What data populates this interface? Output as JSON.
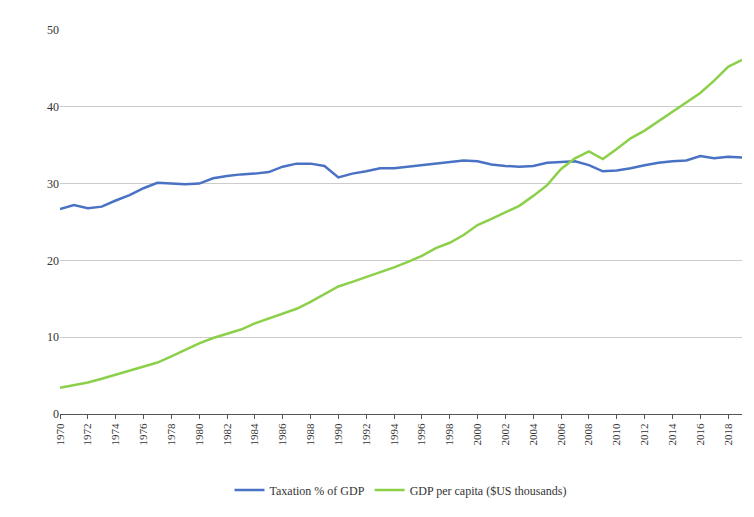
{
  "chart_data": {
    "type": "line",
    "x": [
      1970,
      1971,
      1972,
      1973,
      1974,
      1975,
      1976,
      1977,
      1978,
      1979,
      1980,
      1981,
      1982,
      1983,
      1984,
      1985,
      1986,
      1987,
      1988,
      1989,
      1990,
      1991,
      1992,
      1993,
      1994,
      1995,
      1996,
      1997,
      1998,
      1999,
      2000,
      2001,
      2002,
      2003,
      2004,
      2005,
      2006,
      2007,
      2008,
      2009,
      2010,
      2011,
      2012,
      2013,
      2014,
      2015,
      2016,
      2017,
      2018,
      2019
    ],
    "series": [
      {
        "name": "Taxation % of GDP",
        "color": "#4a72c4",
        "values": [
          26.7,
          27.2,
          26.8,
          27.0,
          27.8,
          28.5,
          29.4,
          30.1,
          30.0,
          29.9,
          30.0,
          30.7,
          31.0,
          31.2,
          31.3,
          31.5,
          32.2,
          32.6,
          32.6,
          32.3,
          30.8,
          31.3,
          31.6,
          32.0,
          32.0,
          32.2,
          32.4,
          32.6,
          32.8,
          33.0,
          32.9,
          32.5,
          32.3,
          32.2,
          32.3,
          32.7,
          32.8,
          32.9,
          32.4,
          31.6,
          31.7,
          32.0,
          32.4,
          32.7,
          32.9,
          33.0,
          33.6,
          33.3,
          33.5,
          33.4
        ]
      },
      {
        "name": "GDP per capita ($US thousands)",
        "color": "#8cd04a",
        "values": [
          3.4,
          3.7,
          4.1,
          4.6,
          5.1,
          5.6,
          6.1,
          6.7,
          7.5,
          8.4,
          9.2,
          9.9,
          10.4,
          11.0,
          11.8,
          12.4,
          13.0,
          13.7,
          14.6,
          15.6,
          16.6,
          17.2,
          17.8,
          18.4,
          19.1,
          19.8,
          20.6,
          21.6,
          22.3,
          23.3,
          24.6,
          25.4,
          26.2,
          27.1,
          28.4,
          29.8,
          31.9,
          33.3,
          34.2,
          33.2,
          34.5,
          35.9,
          36.9,
          38.1,
          39.3,
          40.5,
          41.8,
          43.4,
          45.2,
          46.1
        ]
      }
    ],
    "xlim": [
      1970,
      2019
    ],
    "xticks": [
      1970,
      1972,
      1974,
      1976,
      1978,
      1980,
      1982,
      1984,
      1986,
      1988,
      1990,
      1992,
      1994,
      1996,
      1998,
      2000,
      2002,
      2004,
      2006,
      2008,
      2010,
      2012,
      2014,
      2016,
      2018
    ],
    "ylim": [
      0,
      50
    ],
    "yticks": [
      0,
      10,
      20,
      30,
      40,
      50
    ],
    "grid": true,
    "legend": "bottom"
  }
}
